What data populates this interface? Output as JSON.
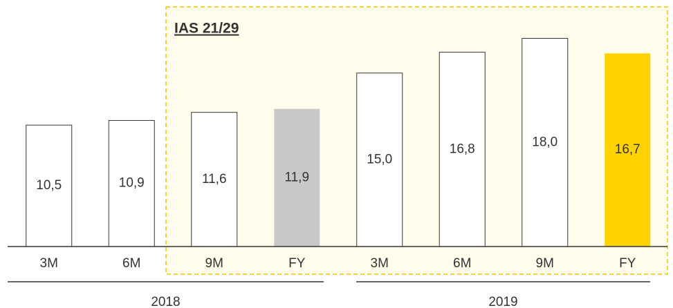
{
  "chart_data": {
    "type": "bar",
    "annotation": "IAS 21/29",
    "categories": [
      "3M",
      "6M",
      "9M",
      "FY",
      "3M",
      "6M",
      "9M",
      "FY"
    ],
    "groups": [
      "2018",
      "2019"
    ],
    "values": [
      10.5,
      10.9,
      11.6,
      11.9,
      15.0,
      16.8,
      18.0,
      16.7
    ],
    "value_labels": [
      "10,5",
      "10,9",
      "11,6",
      "11,9",
      "15,0",
      "16,8",
      "18,0",
      "16,7"
    ],
    "colors": [
      "#ffffff",
      "#ffffff",
      "#ffffff",
      "#c8c8c8",
      "#ffffff",
      "#ffffff",
      "#ffffff",
      "#ffd200"
    ],
    "ylim": [
      0,
      20
    ]
  }
}
